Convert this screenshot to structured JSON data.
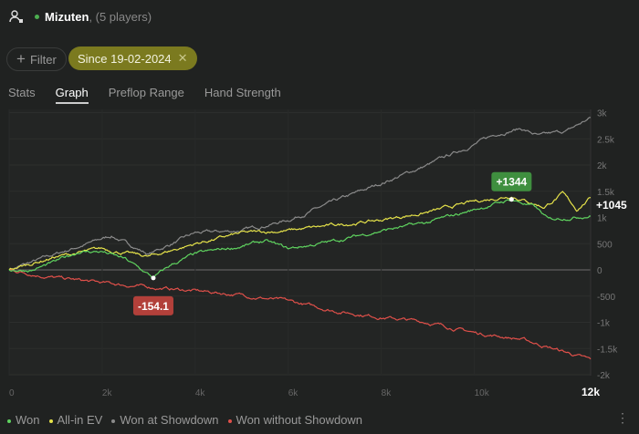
{
  "header": {
    "icon": "user-group-icon",
    "name": "Mizuten",
    "players": ", (5 players)"
  },
  "filter_label": "Filter",
  "date_chip": "Since 19-02-2024",
  "tabs": [
    "Stats",
    "Graph",
    "Preflop Range",
    "Hand Strength"
  ],
  "active_tab": "Graph",
  "chart_data": {
    "type": "line",
    "xlim": [
      0,
      12500
    ],
    "ylim": [
      -2000,
      3000
    ],
    "x_ticks": [
      "0",
      "2k",
      "4k",
      "6k",
      "8k",
      "10k"
    ],
    "x_ticks_values": [
      0,
      2000,
      4000,
      6000,
      8000,
      10000
    ],
    "x_current": "12k",
    "y_ticks": [
      "3k",
      "2.5k",
      "2k",
      "1.5k",
      "1k",
      "500",
      "0",
      "-500",
      "-1k",
      "-1.5k",
      "-2k"
    ],
    "y_ticks_values": [
      3000,
      2500,
      2000,
      1500,
      1000,
      500,
      0,
      -500,
      -1000,
      -1500,
      -2000
    ],
    "series": [
      {
        "name": "Won at Showdown",
        "color": "#8a8a8a",
        "points": [
          [
            0,
            0
          ],
          [
            1000,
            300
          ],
          [
            2200,
            650
          ],
          [
            3000,
            300
          ],
          [
            4000,
            700
          ],
          [
            5000,
            750
          ],
          [
            6000,
            950
          ],
          [
            7000,
            1300
          ],
          [
            8000,
            1650
          ],
          [
            9000,
            2000
          ],
          [
            10000,
            2400
          ],
          [
            10500,
            2600
          ],
          [
            11000,
            2700
          ],
          [
            11400,
            2550
          ],
          [
            12000,
            2650
          ],
          [
            12500,
            2900
          ]
        ]
      },
      {
        "name": "Won without Showdown",
        "color": "#e0504a",
        "points": [
          [
            0,
            0
          ],
          [
            1000,
            -150
          ],
          [
            2000,
            -250
          ],
          [
            3000,
            -330
          ],
          [
            4000,
            -400
          ],
          [
            5000,
            -480
          ],
          [
            6000,
            -600
          ],
          [
            7000,
            -780
          ],
          [
            8000,
            -900
          ],
          [
            9000,
            -1000
          ],
          [
            10000,
            -1200
          ],
          [
            11000,
            -1320
          ],
          [
            11500,
            -1450
          ],
          [
            12000,
            -1580
          ],
          [
            12500,
            -1720
          ]
        ]
      },
      {
        "name": "All-in EV",
        "color": "#e6e34a",
        "points": [
          [
            0,
            0
          ],
          [
            1000,
            250
          ],
          [
            2000,
            400
          ],
          [
            3000,
            250
          ],
          [
            4000,
            500
          ],
          [
            5000,
            700
          ],
          [
            6000,
            750
          ],
          [
            7000,
            850
          ],
          [
            8000,
            950
          ],
          [
            9000,
            1100
          ],
          [
            10000,
            1300
          ],
          [
            10800,
            1420
          ],
          [
            11500,
            1200
          ],
          [
            11900,
            1450
          ],
          [
            12200,
            1150
          ],
          [
            12500,
            1380
          ]
        ]
      },
      {
        "name": "Won",
        "color": "#5fd35f",
        "points": [
          [
            0,
            0
          ],
          [
            500,
            0
          ],
          [
            1000,
            150
          ],
          [
            1500,
            350
          ],
          [
            2000,
            350
          ],
          [
            2500,
            200
          ],
          [
            3100,
            -154.1
          ],
          [
            3500,
            100
          ],
          [
            4000,
            300
          ],
          [
            5000,
            450
          ],
          [
            5500,
            550
          ],
          [
            6000,
            400
          ],
          [
            7000,
            550
          ],
          [
            8000,
            750
          ],
          [
            9000,
            900
          ],
          [
            10000,
            1150
          ],
          [
            10800,
            1344
          ],
          [
            11300,
            1200
          ],
          [
            11600,
            950
          ],
          [
            12000,
            1000
          ],
          [
            12500,
            1045
          ]
        ]
      }
    ],
    "annotations": [
      {
        "label": "+1344",
        "x": 10800,
        "y": 1344,
        "color": "#3f8f3f"
      },
      {
        "label": "-154.1",
        "x": 3100,
        "y": -154.1,
        "color": "#b2403a"
      }
    ],
    "end_label": "+1045"
  },
  "legend": [
    {
      "label": "Won",
      "color": "#5fd35f"
    },
    {
      "label": "All-in EV",
      "color": "#e6e34a"
    },
    {
      "label": "Won at Showdown",
      "color": "#8a8a8a"
    },
    {
      "label": "Won without Showdown",
      "color": "#e0504a"
    }
  ]
}
